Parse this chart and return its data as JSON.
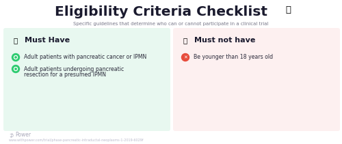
{
  "title": "Eligibility Criteria Checklist",
  "subtitle": "Specific guidelines that determine who can or cannot participate in a clinical trial",
  "left_panel_bg": "#e8f8f0",
  "right_panel_bg": "#fdf0f0",
  "left_header": "Must Have",
  "right_header": "Must not have",
  "left_items": [
    "Adult patients with pancreatic cancer or IPMN",
    "Adult patients undergoing pancreatic\nresection for a presumed IPMN"
  ],
  "right_items": [
    "Be younger than 18 years old"
  ],
  "check_color": "#2ecc71",
  "x_color": "#e74c3c",
  "thumb_color": "#f0a500",
  "header_text_color": "#1a1a2e",
  "item_text_color": "#2a2a3a",
  "subtitle_color": "#777788",
  "footer_logo": "Power",
  "footer_url": "www.withpower.com/trial/phase-pancreatic-intraductal-neoplasms-1-2019-6029f",
  "footer_color": "#aaaabb",
  "bg_color": "#ffffff",
  "title_fontsize": 14.5,
  "subtitle_fontsize": 5.0,
  "header_fontsize": 8.0,
  "item_fontsize": 5.6
}
